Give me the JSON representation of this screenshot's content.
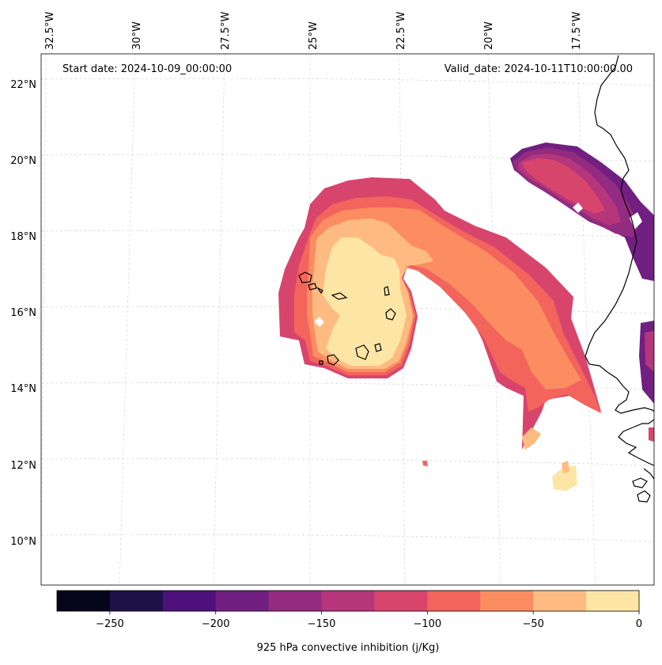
{
  "map": {
    "start_date_label": "Start date: 2024-10-09_00:00:00",
    "valid_date_label": "Valid_date: 2024-10-11T10:00:00.00",
    "lon_labels": [
      "32.5°W",
      "30°W",
      "27.5°W",
      "25°W",
      "22.5°W",
      "20°W",
      "17.5°W"
    ],
    "lat_labels": [
      "22°N",
      "20°N",
      "18°N",
      "16°N",
      "14°N",
      "12°N",
      "10°N"
    ],
    "variable": "925 hPa convective inhibition",
    "units": "j/Kg"
  },
  "colorbar": {
    "label": "925 hPa convective inhibition (j/Kg)",
    "levels": [
      -275,
      -250,
      -225,
      -200,
      -175,
      -150,
      -125,
      -100,
      -75,
      -50,
      -25,
      0
    ],
    "tick_values": [
      -250,
      -200,
      -150,
      -100,
      -50,
      0
    ],
    "tick_labels": [
      "−250",
      "−200",
      "−150",
      "−100",
      "−50",
      "0"
    ],
    "colors": [
      "#06051a",
      "#1e1147",
      "#4e117b",
      "#711f81",
      "#932b80",
      "#b5367a",
      "#d8456c",
      "#f2645c",
      "#fb8d61",
      "#febb81",
      "#fde6a5"
    ]
  }
}
